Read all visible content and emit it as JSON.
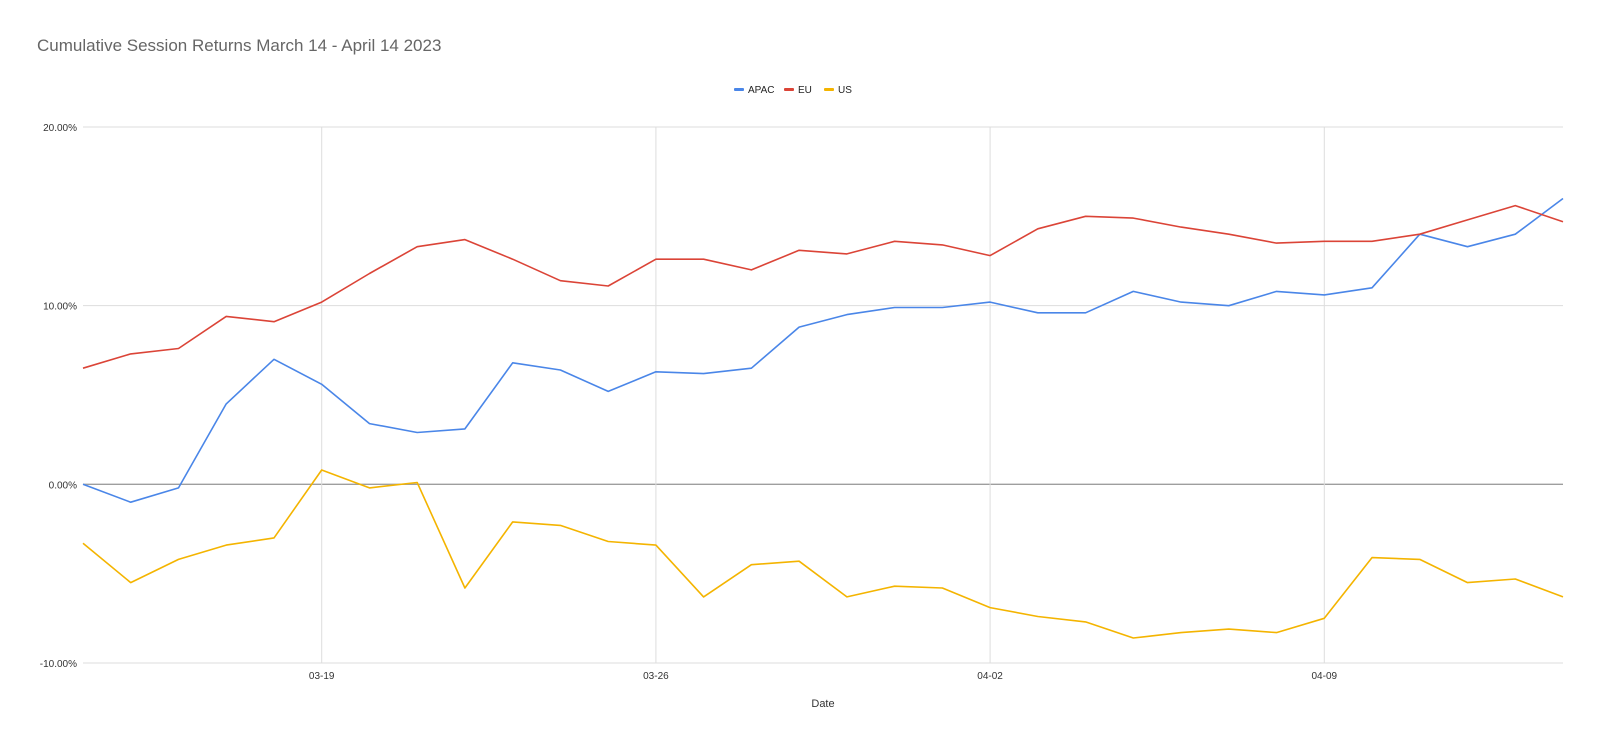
{
  "chart_data": {
    "type": "line",
    "title": "Cumulative Session Returns March 14 - April 14 2023",
    "xlabel": "Date",
    "ylabel": "",
    "x": [
      "2023-03-14",
      "2023-03-15",
      "2023-03-16",
      "2023-03-17",
      "2023-03-18",
      "2023-03-19",
      "2023-03-20",
      "2023-03-21",
      "2023-03-22",
      "2023-03-23",
      "2023-03-24",
      "2023-03-25",
      "2023-03-26",
      "2023-03-27",
      "2023-03-28",
      "2023-03-29",
      "2023-03-30",
      "2023-03-31",
      "2023-04-01",
      "2023-04-02",
      "2023-04-03",
      "2023-04-04",
      "2023-04-05",
      "2023-04-06",
      "2023-04-07",
      "2023-04-08",
      "2023-04-09",
      "2023-04-10",
      "2023-04-11",
      "2023-04-12",
      "2023-04-13",
      "2023-04-14"
    ],
    "x_ticks": [
      {
        "value": "2023-03-19",
        "label": "03-19"
      },
      {
        "value": "2023-03-26",
        "label": "03-26"
      },
      {
        "value": "2023-04-02",
        "label": "04-02"
      },
      {
        "value": "2023-04-09",
        "label": "04-09"
      }
    ],
    "ylim": [
      -10,
      20
    ],
    "y_ticks": [
      {
        "value": 20,
        "label": "20.00%"
      },
      {
        "value": 10,
        "label": "10.00%"
      },
      {
        "value": 0,
        "label": "0.00%"
      },
      {
        "value": -10,
        "label": "-10.00%"
      }
    ],
    "grid": true,
    "legend_position": "top",
    "series": [
      {
        "name": "APAC",
        "color": "#4a86e8",
        "values": [
          0.0,
          -1.0,
          -0.2,
          4.5,
          7.0,
          5.6,
          3.4,
          2.9,
          3.1,
          6.8,
          6.4,
          5.2,
          6.3,
          6.2,
          6.5,
          8.8,
          9.5,
          9.9,
          9.9,
          10.2,
          9.6,
          9.6,
          10.8,
          10.2,
          10.0,
          10.8,
          10.6,
          11.0,
          14.0,
          13.3,
          14.0,
          16.0
        ]
      },
      {
        "name": "EU",
        "color": "#db4437",
        "values": [
          6.5,
          7.3,
          7.6,
          9.4,
          9.1,
          10.2,
          11.8,
          13.3,
          13.7,
          12.6,
          11.4,
          11.1,
          12.6,
          12.6,
          12.0,
          13.1,
          12.9,
          13.6,
          13.4,
          12.8,
          14.3,
          15.0,
          14.9,
          14.4,
          14.0,
          13.5,
          13.6,
          13.6,
          14.0,
          14.8,
          15.6,
          14.7
        ]
      },
      {
        "name": "US",
        "color": "#f4b400",
        "values": [
          -3.3,
          -5.5,
          -4.2,
          -3.4,
          -3.0,
          0.8,
          -0.2,
          0.1,
          -5.8,
          -2.1,
          -2.3,
          -3.2,
          -3.4,
          -6.3,
          -4.5,
          -4.3,
          -6.3,
          -5.7,
          -5.8,
          -6.9,
          -7.4,
          -7.7,
          -8.6,
          -8.3,
          -8.1,
          -8.3,
          -7.5,
          -4.1,
          -4.2,
          -5.5,
          -5.3,
          -6.3
        ]
      }
    ]
  }
}
